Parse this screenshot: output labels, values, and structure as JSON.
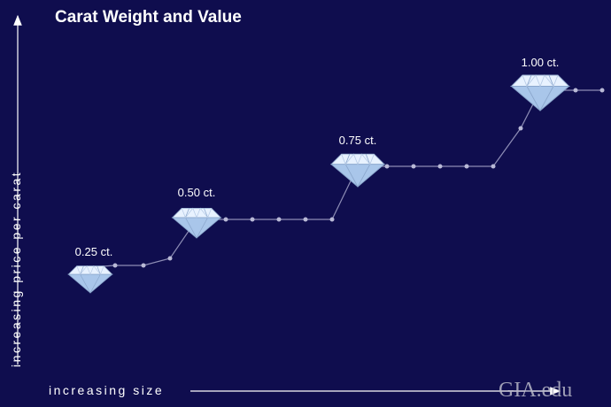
{
  "header": {
    "title": "Carat Weight and Value"
  },
  "axes": {
    "y_label": "increasing price per carat",
    "x_label": "increasing size"
  },
  "nodes": [
    {
      "label": "0.25 ct."
    },
    {
      "label": "0.50 ct."
    },
    {
      "label": "0.75 ct."
    },
    {
      "label": "1.00 ct."
    }
  ],
  "watermark": "GIA.edu"
}
